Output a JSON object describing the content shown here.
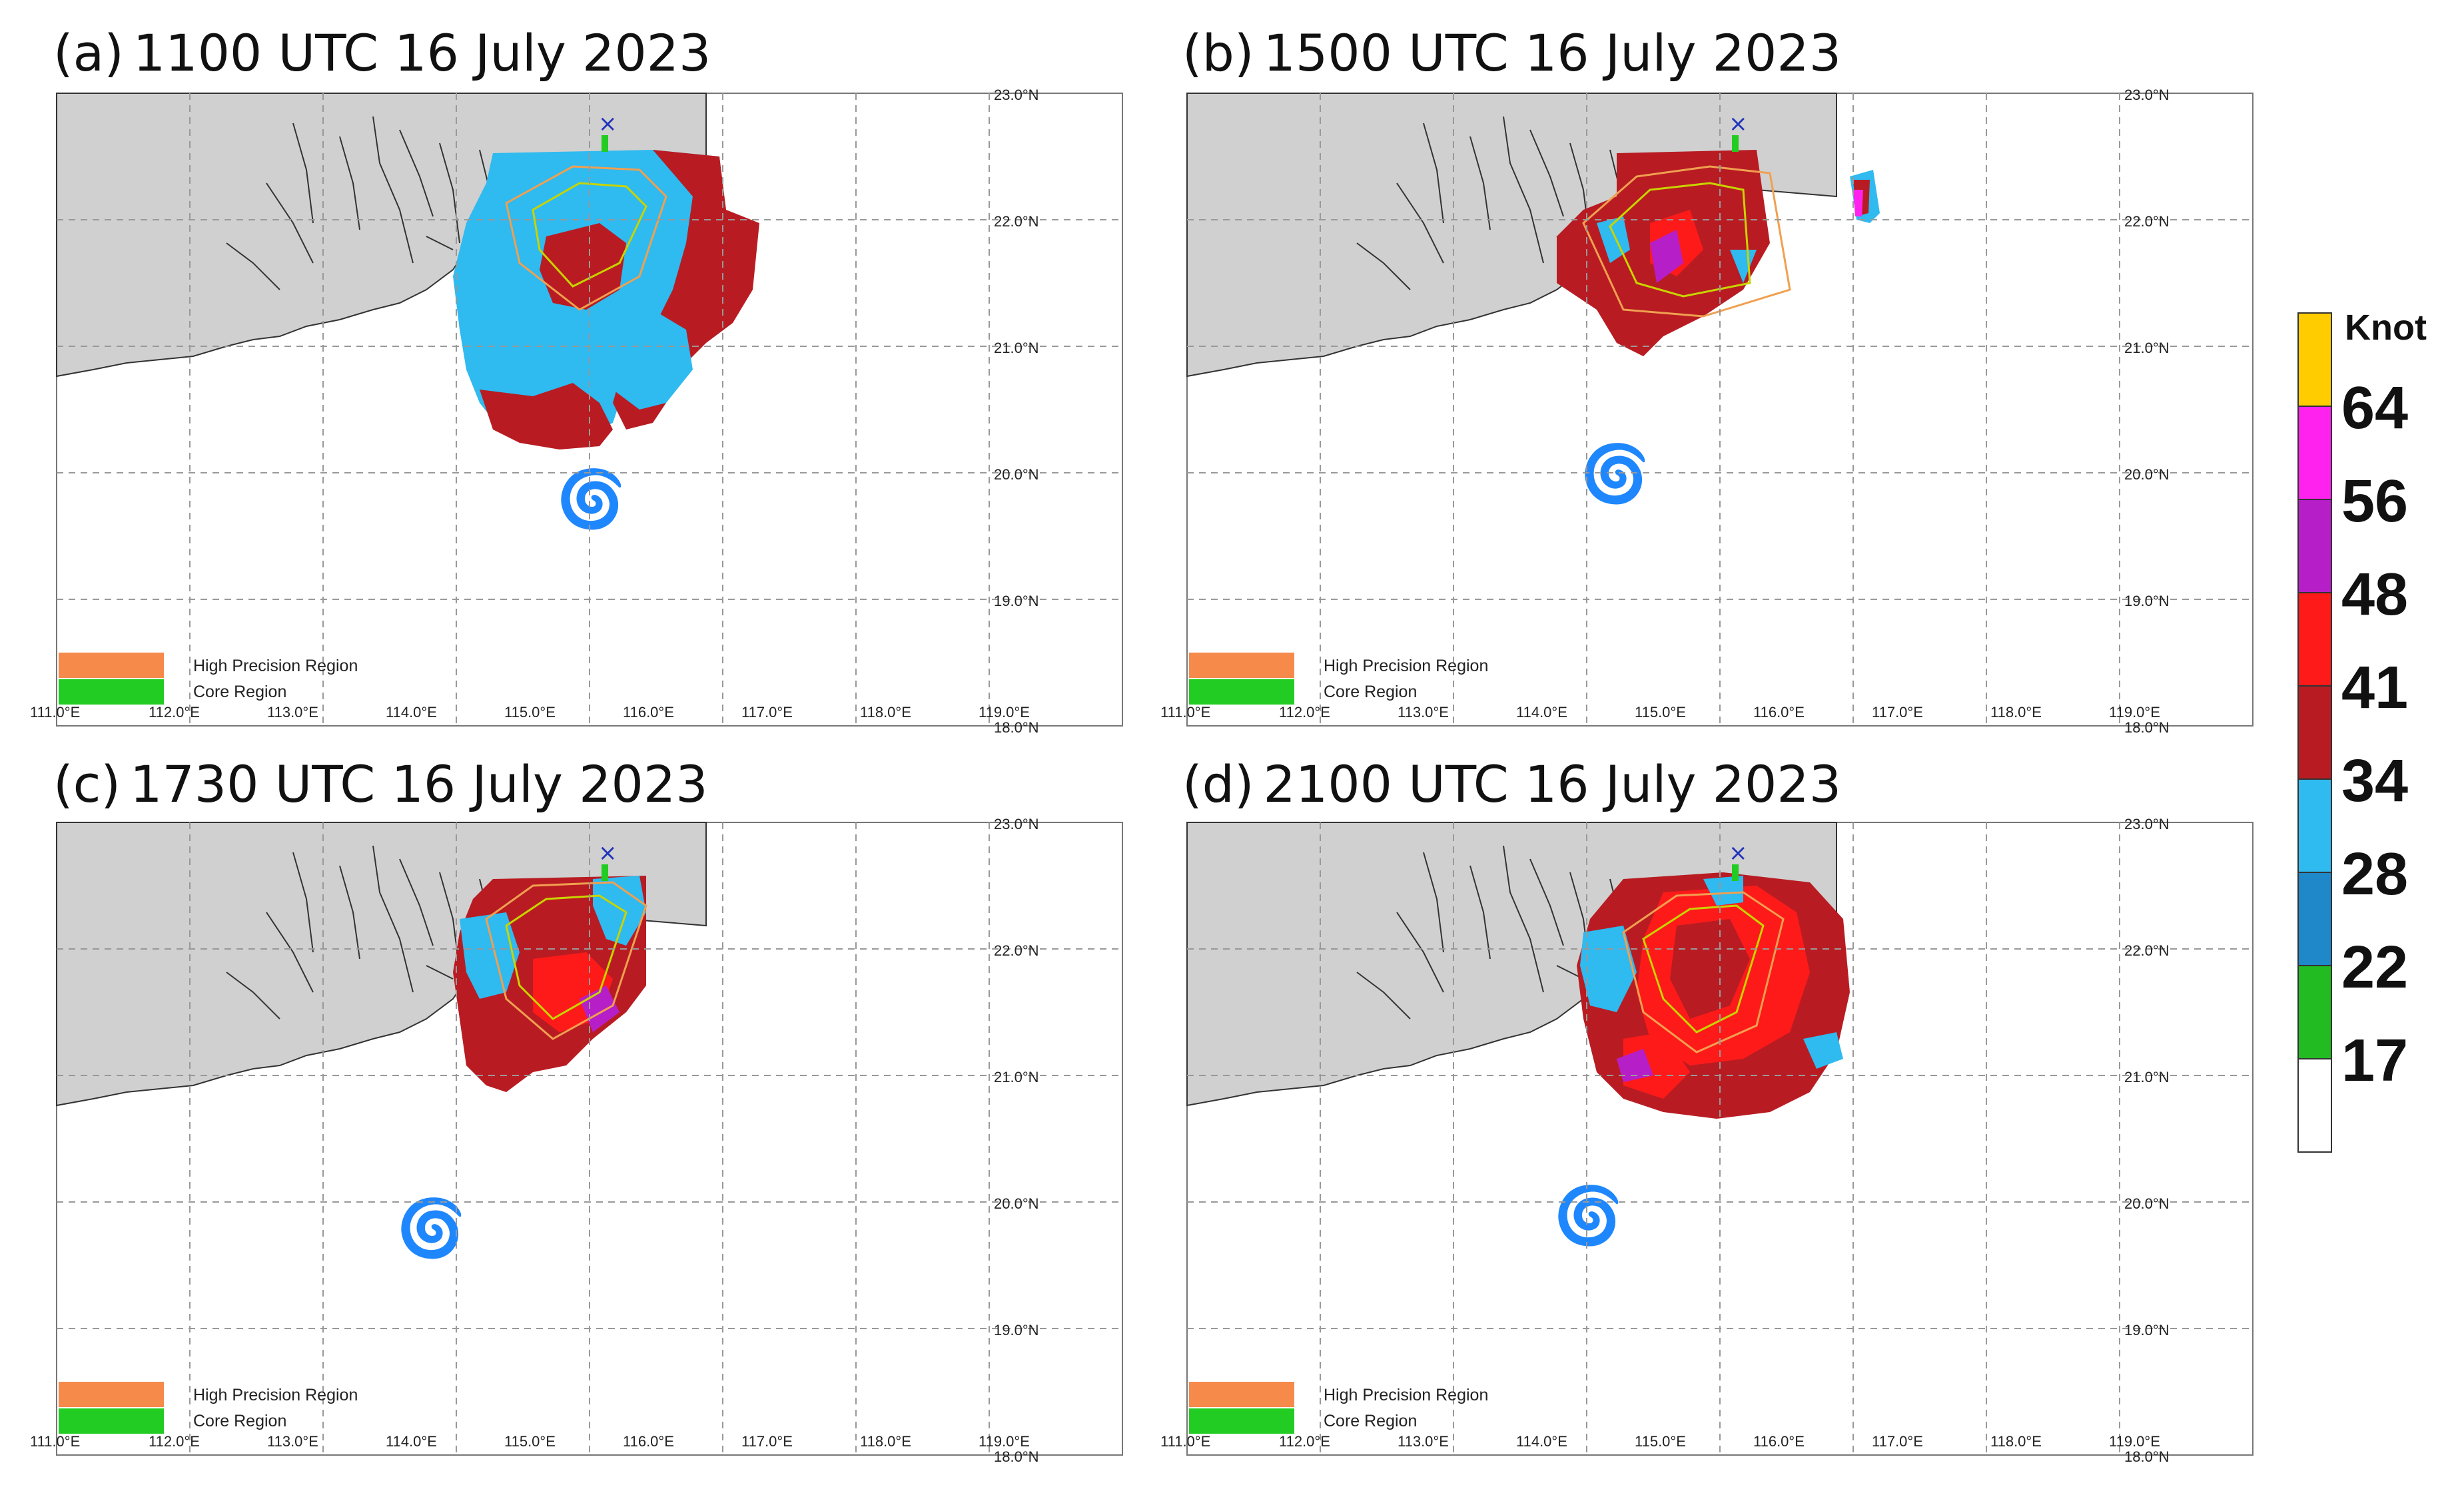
{
  "colors": {
    "land": "#d0d0d0",
    "coast": "#333333",
    "grid": "#999999",
    "tc_symbol": "#ee1111",
    "station_marker": "#2233bb",
    "high_precision_region": "#f58a4b",
    "core_region": "#22cc22",
    "poly_high_precision": "#f0a050",
    "poly_core": "#c8d400"
  },
  "wind_colors": {
    "below_17": "#ffffff",
    "17_22": "#22bb22",
    "22_28": "#1e88c8",
    "28_34": "#2fbaf0",
    "34_41": "#b81c22",
    "41_48": "#ff1a1a",
    "48_56": "#b61fc8",
    "56_64": "#ff22ee",
    "above_64": "#ffcc00"
  },
  "colorbar": {
    "unit": "Knot",
    "ticks": [
      "64",
      "56",
      "48",
      "41",
      "34",
      "28",
      "22",
      "17"
    ]
  },
  "map": {
    "lat_labels": [
      "23.0°N",
      "22.0°N",
      "21.0°N",
      "20.0°N",
      "19.0°N",
      "18.0°N"
    ],
    "lon_labels": [
      "111.0°E",
      "112.0°E",
      "113.0°E",
      "114.0°E",
      "115.0°E",
      "116.0°E",
      "117.0°E",
      "118.0°E",
      "119.0°E"
    ],
    "legend": {
      "high_precision": "High Precision Region",
      "core": "Core Region"
    },
    "tc_symbol": "🌀",
    "station_symbol": "×"
  },
  "panels": [
    {
      "label": "(a)",
      "time": "1100 UTC 16 July 2023",
      "tc": {
        "lon": 114.9,
        "lat": 19.8
      }
    },
    {
      "label": "(b)",
      "time": "1500 UTC 16 July 2023",
      "tc": {
        "lon": 114.1,
        "lat": 20.0
      }
    },
    {
      "label": "(c)",
      "time": "1730 UTC 16 July 2023",
      "tc": {
        "lon": 113.7,
        "lat": 19.8
      }
    },
    {
      "label": "(d)",
      "time": "2100 UTC 16 July 2023",
      "tc": {
        "lon": 113.9,
        "lat": 19.9
      }
    }
  ]
}
